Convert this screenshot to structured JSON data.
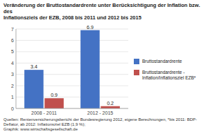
{
  "chart_data": {
    "type": "bar",
    "title": "Veränderung der Bruttostandardrente unter Berücksichtigung der Inflation bzw. des\nInflationsziels der EZB, 2008 bis 2011 und 2012 bis 2015",
    "footnote": [
      "Quellen: Rentenversicherungsbericht der Bundesregierung 2012, eigene Berechnungen, *bis 2011: BDP-Deflator, ab 2012: Inflationsziel EZB (1,9 %);",
      "Graphik: www.wirtschaftsgesellschaft.de"
    ],
    "categories": [
      "2008 - 2011",
      "2012 - 2015"
    ],
    "series": [
      {
        "name": "Bruttostandardrente",
        "color": "#4472C4",
        "values": [
          3.4,
          6.9
        ]
      },
      {
        "name": "Bruttostandardrente -\nInflation/Inflationsziel EZB*",
        "color": "#C0504D",
        "values": [
          0.9,
          0.2
        ]
      }
    ],
    "ylim": [
      0,
      7
    ],
    "yticks": [
      0,
      1,
      2,
      3,
      4,
      5,
      6,
      7
    ],
    "grid": true,
    "legend": "right",
    "data_labels": true
  }
}
